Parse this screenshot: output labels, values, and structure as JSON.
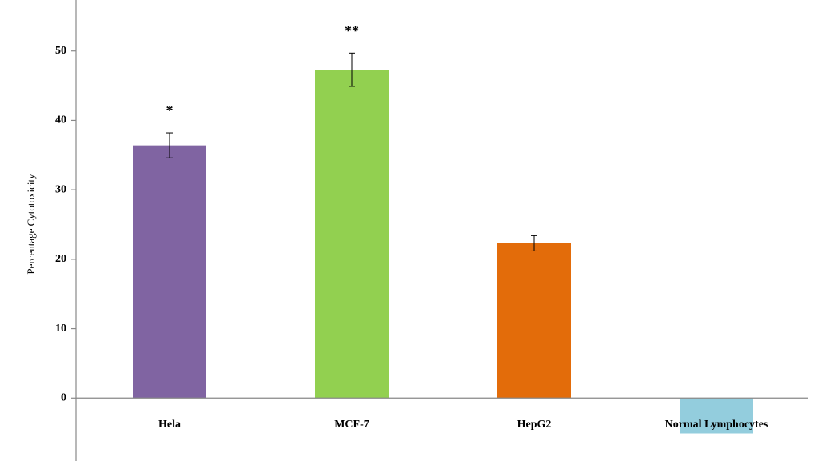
{
  "chart_data": {
    "type": "bar",
    "y_label": "Percentage Cytotoxicity",
    "categories": [
      "Hela",
      "MCF-7",
      "HepG2",
      "Normal Lymphocytes"
    ],
    "values": [
      36.4,
      47.3,
      22.3,
      -5.1
    ],
    "errors": [
      1.8,
      2.4,
      1.1,
      null
    ],
    "annotations": [
      "*",
      "**",
      null,
      null
    ],
    "colors": [
      "#8064a2",
      "#92d050",
      "#e36c0a",
      "#93cddd"
    ],
    "ylim": [
      -10,
      60
    ],
    "yticks": [
      0,
      10,
      20,
      30,
      40,
      50
    ],
    "grid": false
  }
}
